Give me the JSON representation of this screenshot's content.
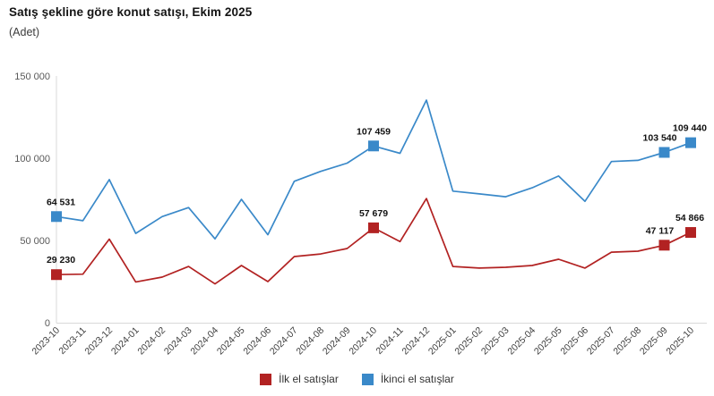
{
  "title": "Satış şekline göre konut satışı, Ekim 2025",
  "subtitle": "(Adet)",
  "legend": {
    "items": [
      {
        "label": "İlk el satışlar",
        "color": "#b22222"
      },
      {
        "label": "İkinci el satışlar",
        "color": "#3a89c9"
      }
    ]
  },
  "colors": {
    "first_hand": "#b22222",
    "second_hand": "#3a89c9",
    "axis_line": "#d9d9d9",
    "data_label": "#111111"
  },
  "chart_data": {
    "type": "line",
    "title": "Satış şekline göre konut satışı, Ekim 2025",
    "subtitle": "(Adet)",
    "ylabel": "Adet",
    "xlabel": "",
    "ylim": [
      0,
      150000
    ],
    "grid": false,
    "legend_position": "bottom",
    "x_tick_rotation": -45,
    "yticks": [
      {
        "value": 0,
        "label": "0"
      },
      {
        "value": 50000,
        "label": "50 000"
      },
      {
        "value": 100000,
        "label": "100 000"
      },
      {
        "value": 150000,
        "label": "150 000"
      }
    ],
    "categories": [
      "2023-10",
      "2023-11",
      "2023-12",
      "2024-01",
      "2024-02",
      "2024-03",
      "2024-04",
      "2024-05",
      "2024-06",
      "2024-07",
      "2024-08",
      "2024-09",
      "2024-10",
      "2024-11",
      "2024-12",
      "2025-01",
      "2025-02",
      "2025-03",
      "2025-04",
      "2025-05",
      "2025-06",
      "2025-07",
      "2025-08",
      "2025-09",
      "2025-10"
    ],
    "series": [
      {
        "name": "İlk el satışlar",
        "color": "#b22222",
        "values": [
          29230,
          29500,
          50800,
          24800,
          27700,
          34200,
          23600,
          34800,
          25000,
          40200,
          41800,
          45100,
          57679,
          49300,
          75500,
          34200,
          33200,
          33700,
          34800,
          38600,
          33200,
          42900,
          43500,
          47117,
          54866
        ],
        "point_labels": {
          "0": "29 230",
          "12": "57 679",
          "23": "47 117",
          "24": "54 866"
        }
      },
      {
        "name": "İkinci el satışlar",
        "color": "#3a89c9",
        "values": [
          64531,
          62000,
          87000,
          54300,
          64500,
          70000,
          51000,
          75000,
          53500,
          86000,
          92000,
          97000,
          107459,
          103000,
          135300,
          80000,
          78300,
          76600,
          82000,
          89200,
          73800,
          98000,
          98700,
          103540,
          109440
        ],
        "point_labels": {
          "0": "64 531",
          "12": "107 459",
          "23": "103 540",
          "24": "109 440"
        }
      }
    ]
  }
}
